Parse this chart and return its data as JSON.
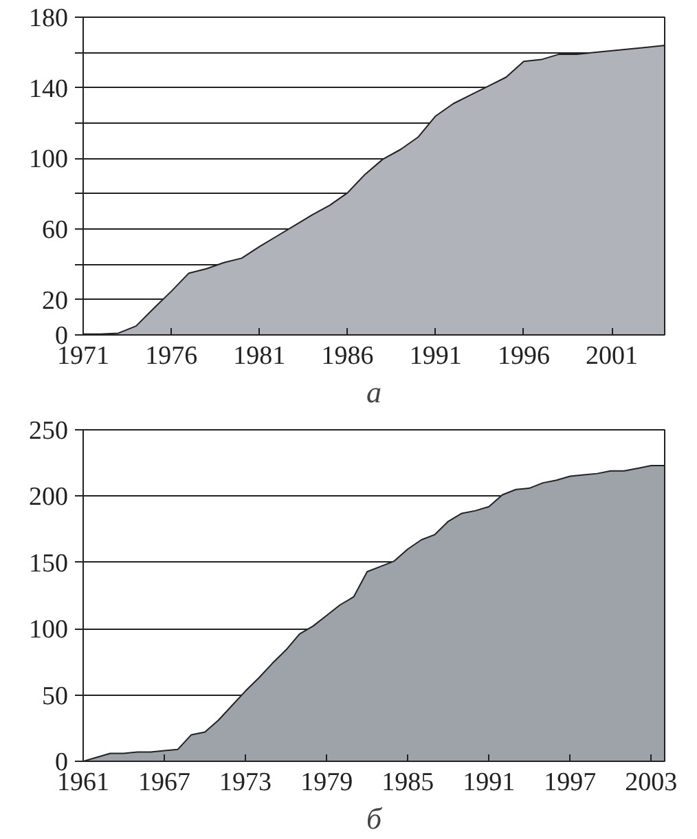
{
  "chart_data": [
    {
      "type": "area",
      "xlabel": "а",
      "x": [
        1971,
        1972,
        1973,
        1974,
        1975,
        1976,
        1977,
        1978,
        1979,
        1980,
        1981,
        1982,
        1983,
        1984,
        1985,
        1986,
        1987,
        1988,
        1989,
        1990,
        1991,
        1992,
        1993,
        1994,
        1995,
        1996,
        1997,
        1998,
        1999,
        2000,
        2001,
        2002,
        2003,
        2004
      ],
      "series": [
        {
          "color": "#b0b3b9",
          "values": [
            0.5,
            0.5,
            1,
            5,
            15,
            24.7,
            35,
            37.5,
            41,
            43.5,
            50,
            56,
            62,
            68,
            73.5,
            80.5,
            91,
            99.5,
            105,
            112,
            124,
            131,
            136,
            141,
            146,
            155,
            156,
            159,
            159,
            160,
            161,
            162,
            163,
            164
          ]
        }
      ],
      "xlim": [
        1971,
        2004
      ],
      "xticks": [
        1971,
        1976,
        1981,
        1986,
        1991,
        1996,
        2001
      ],
      "ylim": [
        0,
        180
      ],
      "yticks": [
        0,
        20,
        {
          "value": 40,
          "label": null
        },
        60,
        {
          "value": 80,
          "label": null
        },
        100,
        {
          "value": 120,
          "label": null
        },
        140,
        {
          "value": 160,
          "label": null
        },
        180
      ],
      "grid": "y"
    },
    {
      "type": "area",
      "xlabel": "б",
      "x": [
        1961,
        1962,
        1963,
        1964,
        1965,
        1966,
        1967,
        1968,
        1969,
        1970,
        1971,
        1972,
        1973,
        1974,
        1975,
        1976,
        1977,
        1978,
        1979,
        1980,
        1981,
        1982,
        1983,
        1984,
        1985,
        1986,
        1987,
        1988,
        1989,
        1990,
        1991,
        1992,
        1993,
        1994,
        1995,
        1996,
        1997,
        1998,
        1999,
        2000,
        2001,
        2002,
        2003,
        2004
      ],
      "series": [
        {
          "color": "#9ea3aa",
          "values": [
            0,
            3,
            6,
            6,
            7,
            7,
            8,
            9,
            20,
            22,
            31,
            42,
            53,
            63,
            74,
            84,
            96,
            102,
            110,
            118,
            124,
            143,
            147,
            151,
            160,
            167,
            171,
            181,
            187,
            189,
            192,
            201,
            205,
            206,
            210,
            212,
            215,
            216,
            217,
            219,
            219,
            221,
            223,
            223
          ]
        }
      ],
      "xlim": [
        1961,
        2004
      ],
      "xticks": [
        1961,
        1967,
        1973,
        1979,
        1985,
        1991,
        1997,
        2003
      ],
      "ylim": [
        0,
        250
      ],
      "yticks": [
        0,
        50,
        100,
        150,
        200,
        250
      ],
      "grid": "y"
    }
  ]
}
